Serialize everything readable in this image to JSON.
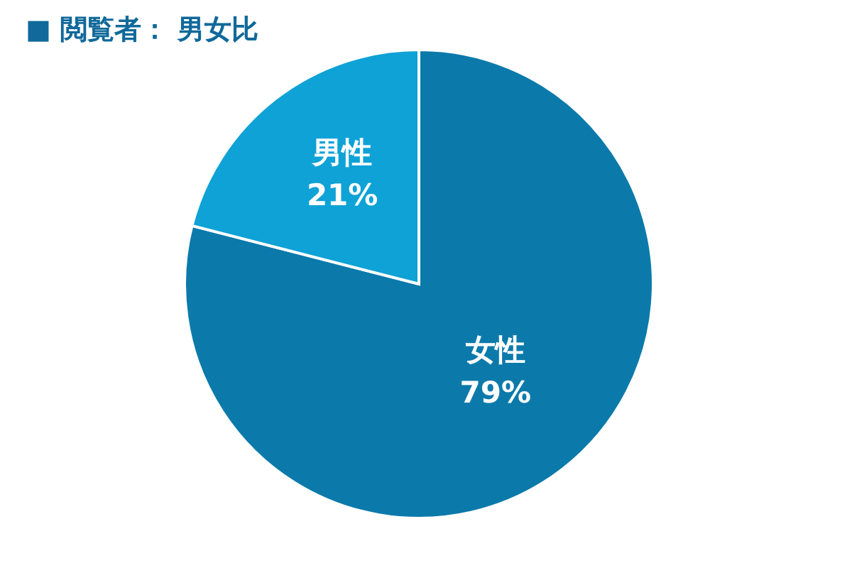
{
  "chart_data": {
    "type": "pie",
    "title": "■ 閲覧者： 男女比",
    "categories": [
      "女性",
      "男性"
    ],
    "values": [
      79,
      21
    ],
    "colors": [
      "#0b7aab",
      "#0ea2d6"
    ],
    "value_labels": [
      "79%",
      "21%"
    ]
  }
}
